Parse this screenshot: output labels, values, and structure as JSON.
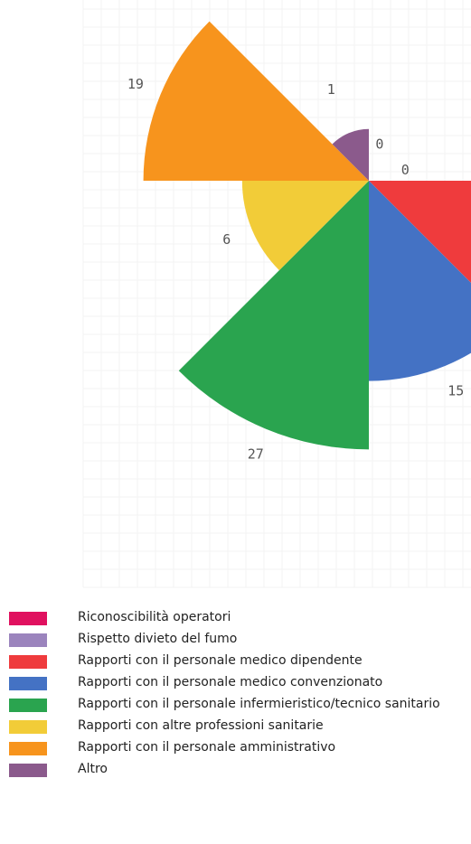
{
  "chart_data": {
    "type": "polar-area",
    "title": "",
    "categories": [
      "Riconoscibilità operatori",
      "Rispetto divieto del fumo",
      "Rapporti con il personale medico dipendente",
      "Rapporti con il personale medico convenzionato",
      "Rapporti con il personale infermieristico/tecnico sanitario",
      "Rapporti con altre professioni sanitarie",
      "Rapporti con il personale amministrativo",
      "Altro"
    ],
    "values": [
      0,
      0,
      57,
      15,
      27,
      6,
      19,
      1
    ],
    "colors": [
      "#e0115f",
      "#9b84bd",
      "#ef3b3d",
      "#4472c4",
      "#2aa44f",
      "#f2cc38",
      "#f7941d",
      "#8b5a8c"
    ],
    "grid": true,
    "legend_position": "bottom"
  }
}
